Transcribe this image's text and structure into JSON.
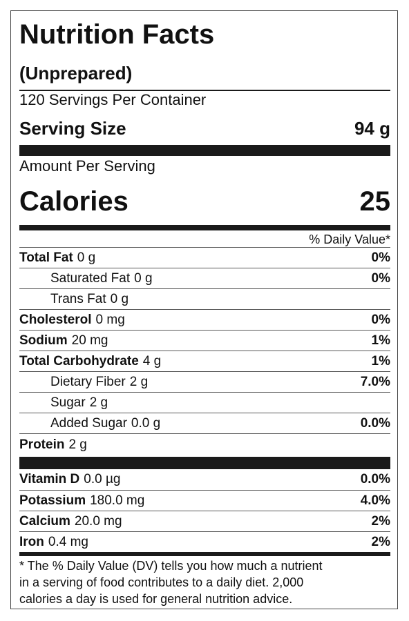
{
  "header": {
    "title": "Nutrition Facts",
    "subtitle": "(Unprepared)",
    "servings": "120 Servings Per Container",
    "serving_size_label": "Serving Size",
    "serving_size_value": "94 g"
  },
  "calories": {
    "heading": "Amount Per Serving",
    "label": "Calories",
    "value": "25"
  },
  "dv_heading": "% Daily Value*",
  "nutrients": [
    {
      "name": "Total Fat",
      "amount": "0 g",
      "dv": "0%",
      "level": 0
    },
    {
      "name": "Saturated Fat",
      "amount": "0 g",
      "dv": "0%",
      "level": 1
    },
    {
      "name": "Trans Fat",
      "amount": "0 g",
      "level": 1
    },
    {
      "name": "Cholesterol",
      "amount": "0 mg",
      "dv": "0%",
      "level": 0
    },
    {
      "name": "Sodium",
      "amount": "20 mg",
      "dv": "1%",
      "level": 0
    },
    {
      "name": "Total Carbohydrate",
      "amount": "4 g",
      "dv": "1%",
      "level": 0
    },
    {
      "name": "Dietary Fiber",
      "amount": "2 g",
      "dv": "7.0%",
      "level": 1
    },
    {
      "name": "Sugar",
      "amount": "2 g",
      "level": 1
    },
    {
      "name": "Added Sugar",
      "amount": "0.0 g",
      "dv": "0.0%",
      "level": 1
    },
    {
      "name": "Protein",
      "amount": "2 g",
      "level": 0
    }
  ],
  "vitamins": [
    {
      "name": "Vitamin D",
      "amount": "0.0 µg",
      "dv": "0.0%"
    },
    {
      "name": "Potassium",
      "amount": "180.0 mg",
      "dv": "4.0%"
    },
    {
      "name": "Calcium",
      "amount": "20.0 mg",
      "dv": "2%"
    },
    {
      "name": "Iron",
      "amount": "0.4 mg",
      "dv": "2%"
    }
  ],
  "footnote": [
    "* The % Daily Value (DV) tells you how much a nutrient",
    "in a serving of food contributes to a daily diet. 2,000",
    "calories a day is used for general nutrition advice."
  ]
}
